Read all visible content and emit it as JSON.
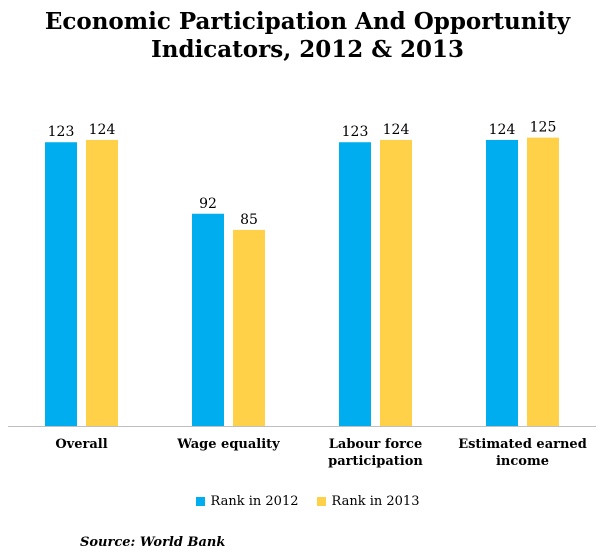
{
  "colors": {
    "series_2012": "#00AEEF",
    "series_2013": "#FFD149",
    "axis": "#BFBFBF"
  },
  "source": "Source: World Bank",
  "chart_data": {
    "type": "bar",
    "title": "Economic Participation And Opportunity\nIndicators, 2012 & 2013",
    "categories": [
      "Overall",
      "Wage equality",
      "Labour force\nparticipation",
      "Estimated earned\nincome"
    ],
    "series": [
      {
        "name": "Rank in 2012",
        "values": [
          123,
          92,
          123,
          124
        ]
      },
      {
        "name": "Rank in 2013",
        "values": [
          124,
          85,
          124,
          125
        ]
      }
    ],
    "xlabel": "",
    "ylabel": "",
    "ylim": [
      0,
      130
    ],
    "grid": false,
    "legend": "bottom"
  }
}
